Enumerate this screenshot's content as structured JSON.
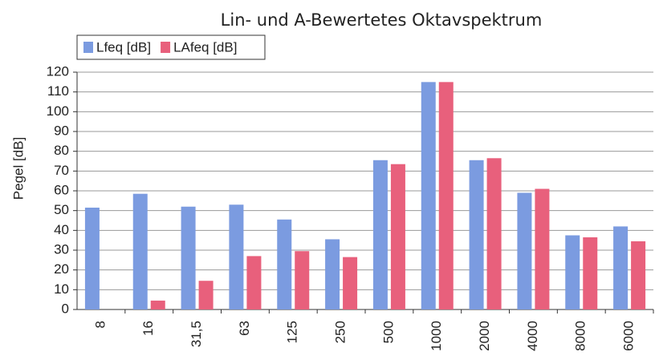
{
  "chart_data": {
    "type": "bar",
    "title": "Lin- und A-Bewertetes Oktavspektrum",
    "y_label": "Pegel [dB]",
    "categories": [
      "8",
      "16",
      "31,5",
      "63",
      "125",
      "250",
      "500",
      "1000",
      "2000",
      "4000",
      "8000",
      "6000"
    ],
    "series": [
      {
        "name": "Lfeq [dB]",
        "color": "#7b9be0",
        "values": [
          51.5,
          58.5,
          52,
          53,
          45.5,
          35.5,
          75.5,
          115,
          75.5,
          59,
          37.5,
          42
        ]
      },
      {
        "name": "LAfeq [dB]",
        "color": "#e8607c",
        "values": [
          null,
          4.5,
          14.5,
          27,
          29.5,
          26.5,
          73.5,
          115,
          76.5,
          61,
          36.5,
          34.5
        ]
      }
    ],
    "ylim": [
      0,
      120
    ],
    "yticks": [
      0,
      10,
      20,
      30,
      40,
      50,
      60,
      70,
      80,
      90,
      100,
      110,
      120
    ],
    "grid": true,
    "legend": "top-left"
  }
}
